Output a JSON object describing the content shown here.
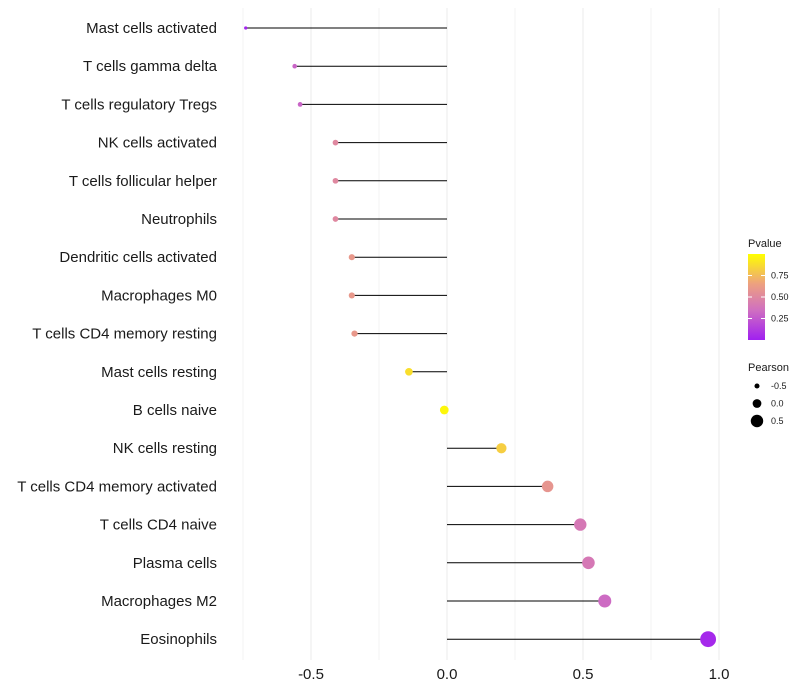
{
  "chart_data": {
    "type": "lollipop",
    "title": "",
    "xlabel": "",
    "ylabel": "",
    "xlim": [
      -0.75,
      1.0
    ],
    "xticks": [
      -0.5,
      0.0,
      0.5,
      1.0
    ],
    "xtick_labels": [
      "-0.5",
      "0.0",
      "0.5",
      "1.0"
    ],
    "grid": true,
    "baseline": 0.0,
    "categories": [
      "Mast cells activated",
      "T cells gamma delta",
      "T cells regulatory  Tregs",
      "NK cells activated",
      "T cells follicular helper",
      "Neutrophils",
      "Dendritic cells activated",
      "Macrophages M0",
      "T cells CD4 memory resting",
      "Mast cells resting",
      "B cells naive",
      "NK cells resting",
      "T cells CD4 memory activated",
      "T cells CD4 naive",
      "Plasma cells",
      "Macrophages M2",
      "Eosinophils"
    ],
    "pearson": [
      -0.74,
      -0.56,
      -0.54,
      -0.41,
      -0.41,
      -0.41,
      -0.35,
      -0.35,
      -0.34,
      -0.14,
      -0.01,
      0.2,
      0.37,
      0.49,
      0.52,
      0.58,
      0.96
    ],
    "pvalue": [
      0.02,
      0.3,
      0.3,
      0.5,
      0.5,
      0.5,
      0.6,
      0.6,
      0.6,
      0.88,
      0.97,
      0.82,
      0.58,
      0.4,
      0.4,
      0.33,
      0.04
    ],
    "legend_pvalue": {
      "title": "Pvalue",
      "ticks": [
        0.25,
        0.5,
        0.75
      ],
      "tick_labels": [
        "0.25",
        "0.50",
        "0.75"
      ],
      "range": [
        0.0,
        1.0
      ],
      "colors": [
        "#a020f0",
        "#e07fb0",
        "#f0b070",
        "#ffff00"
      ]
    },
    "legend_pearson": {
      "title": "Pearson",
      "values": [
        -0.5,
        0.0,
        0.5
      ],
      "labels": [
        "-0.5",
        "0.0",
        "0.5"
      ]
    },
    "legend_placement": "right"
  }
}
